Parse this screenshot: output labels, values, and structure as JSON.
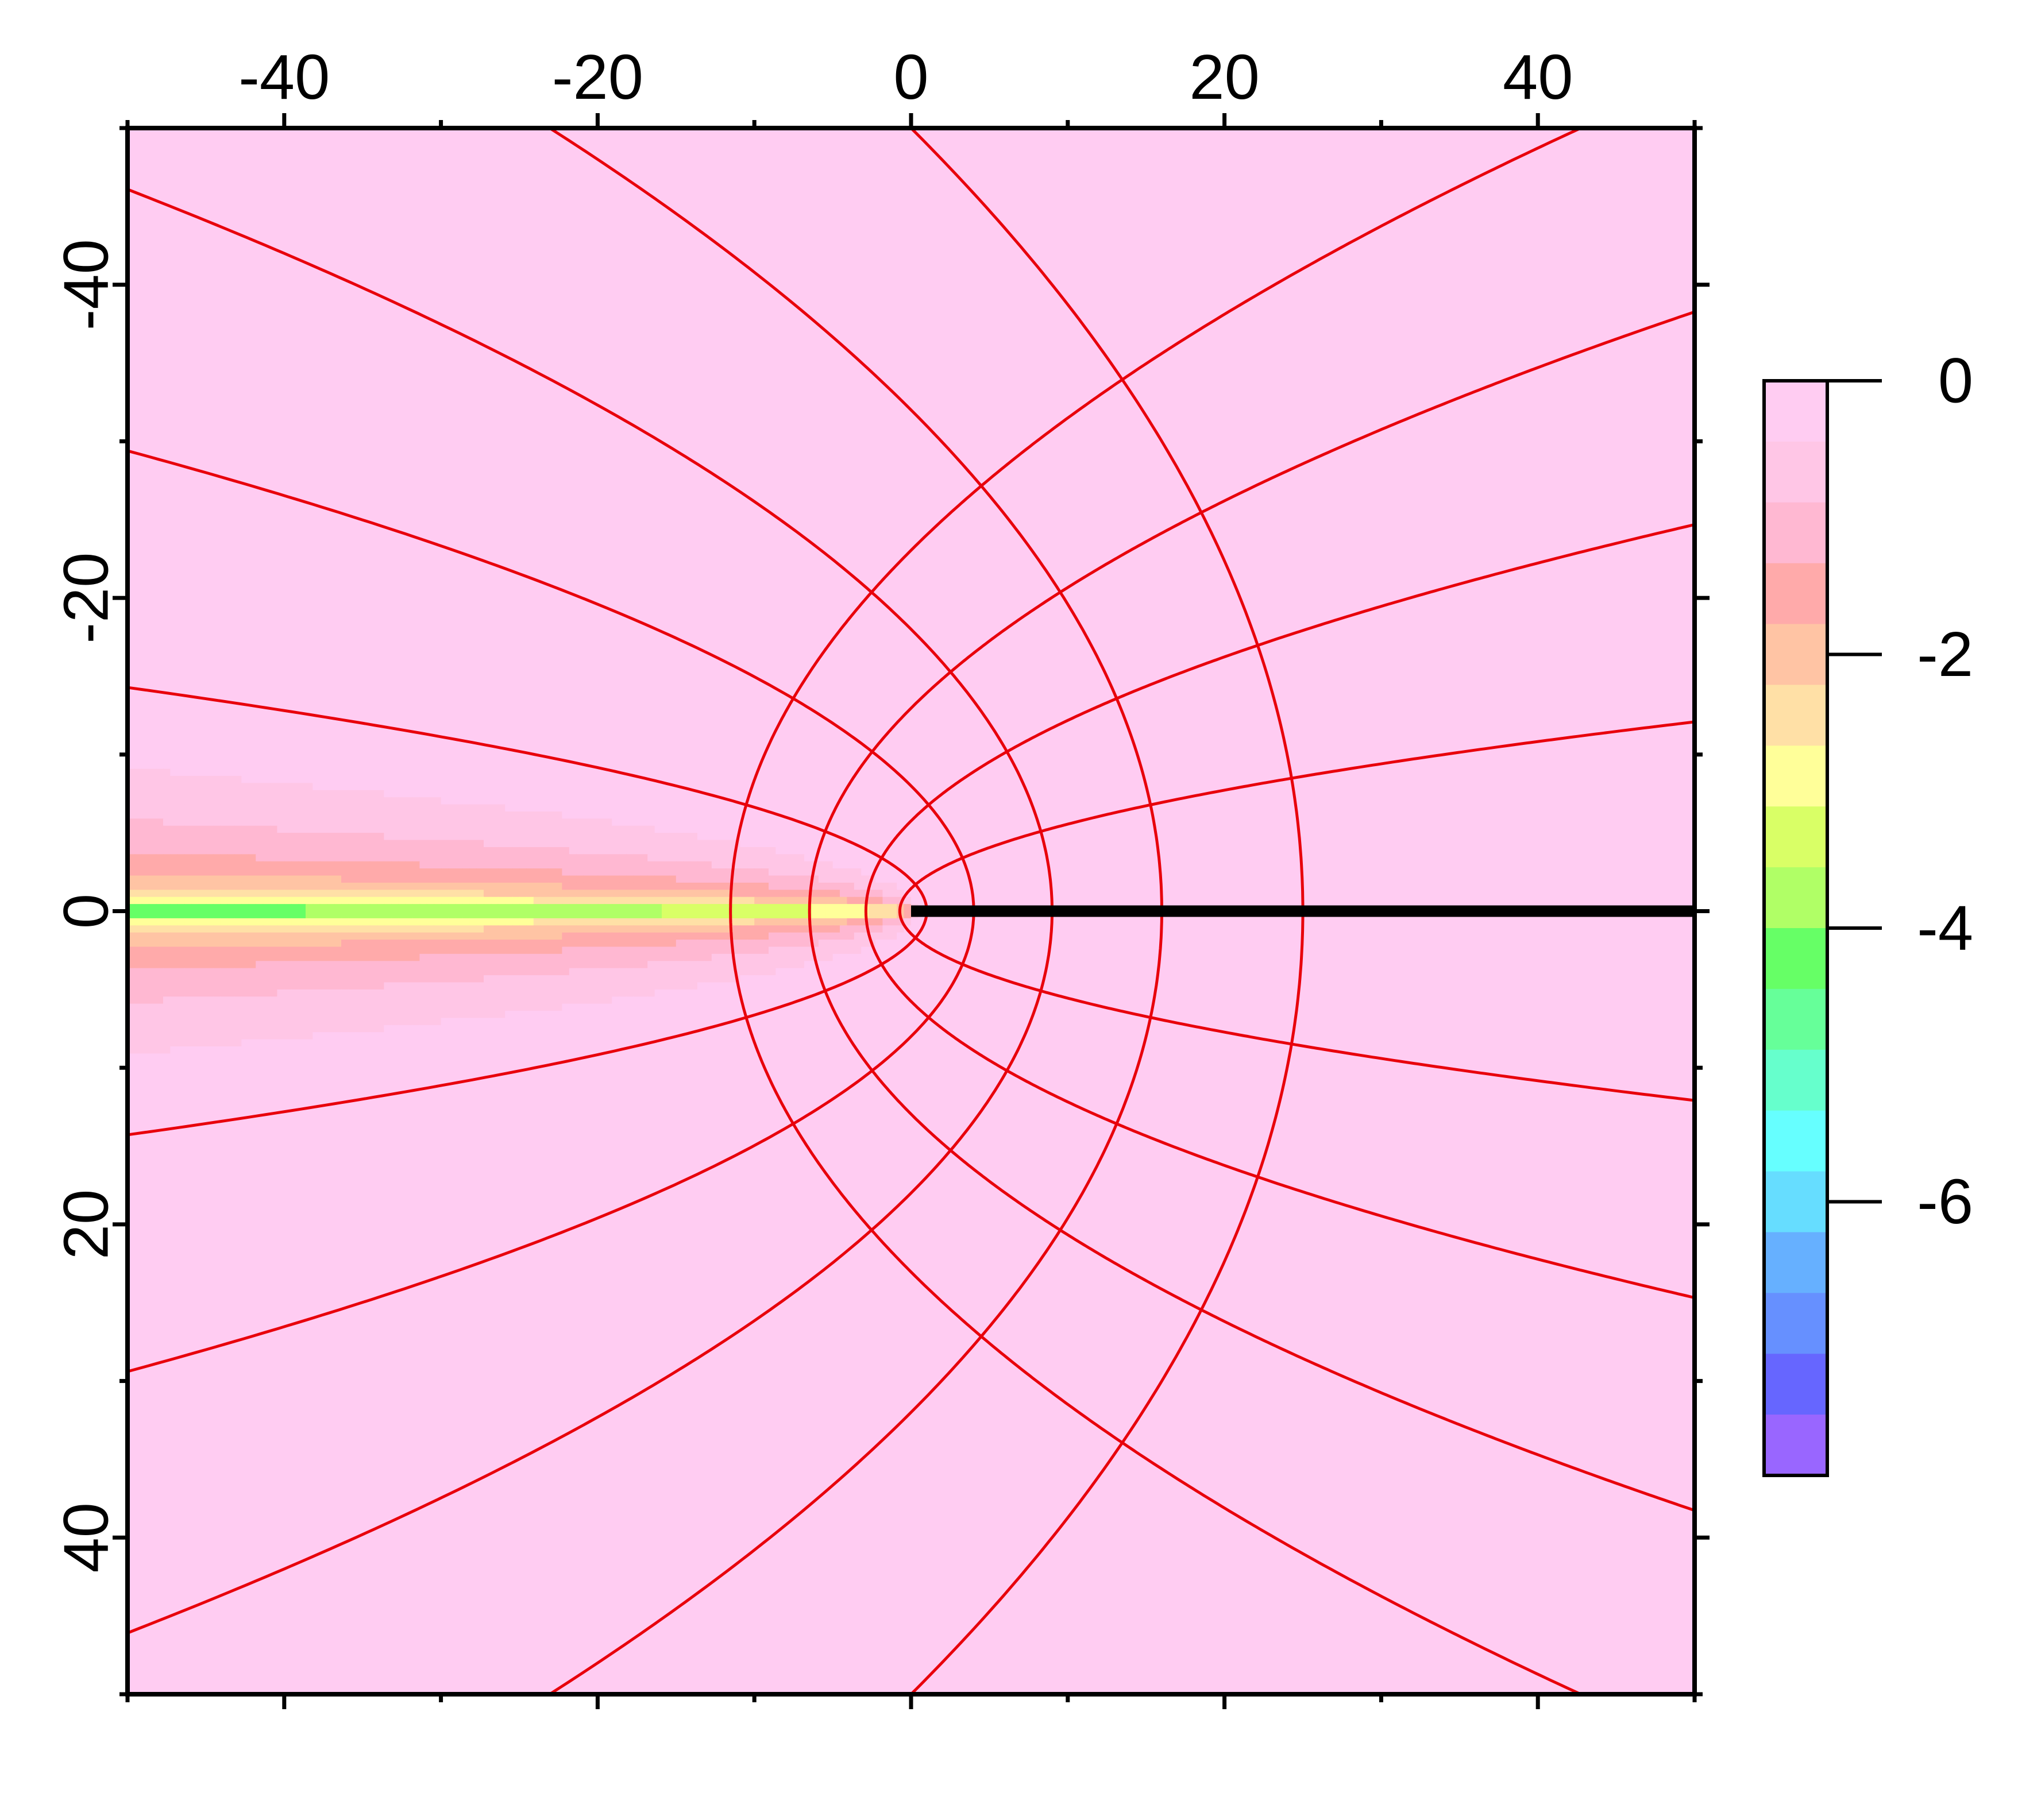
{
  "chart_data": {
    "type": "heatmap",
    "title": "",
    "xlabel": "",
    "ylabel": "",
    "xlim": [
      -50,
      50
    ],
    "ylim": [
      -50,
      50
    ],
    "y_axis_direction": "down",
    "x_ticks": [
      {
        "value": -40,
        "label": "-40"
      },
      {
        "value": -20,
        "label": "-20"
      },
      {
        "value": 0,
        "label": "0"
      },
      {
        "value": 20,
        "label": "20"
      },
      {
        "value": 40,
        "label": "40"
      }
    ],
    "y_ticks": [
      {
        "value": -40,
        "label": "-40"
      },
      {
        "value": -20,
        "label": "-20"
      },
      {
        "value": 0,
        "label": "0"
      },
      {
        "value": 20,
        "label": "20"
      },
      {
        "value": 40,
        "label": "40"
      }
    ],
    "field": {
      "description_formula": "log-scaled field; level = 0.5*ln((r + x)/2) with r = sqrt(x^2+y^2)",
      "band_step": 0.5,
      "level_range": [
        -8,
        0
      ]
    },
    "contour_color": "#e8000b",
    "parabola_u_values": [
      1.4142,
      2.8284,
      4.2426,
      5.6569,
      7.0711
    ],
    "ray_v_values": [
      0,
      1.2,
      2.4,
      3.6,
      4.8,
      -1.2,
      -2.4,
      -3.6,
      -4.8
    ],
    "branch_cut": {
      "from_x": 0,
      "to_x": 50,
      "y": 0,
      "color": "#000000"
    },
    "colorbar": {
      "min": -8,
      "max": 0,
      "ticks": [
        {
          "value": 0,
          "label": "0"
        },
        {
          "value": -2,
          "label": "-2"
        },
        {
          "value": -4,
          "label": "-4"
        },
        {
          "value": -6,
          "label": "-6"
        }
      ],
      "colors_top_to_bottom": [
        "#ffccf2",
        "#ffc6e6",
        "#ffb8d2",
        "#ffaaaa",
        "#ffc4a4",
        "#ffe0a6",
        "#ffff99",
        "#d9ff66",
        "#b0ff66",
        "#66ff66",
        "#66ff99",
        "#66ffcc",
        "#66ffff",
        "#66ddff",
        "#66b0ff",
        "#6690ff",
        "#6666ff",
        "#9966ff"
      ]
    }
  }
}
